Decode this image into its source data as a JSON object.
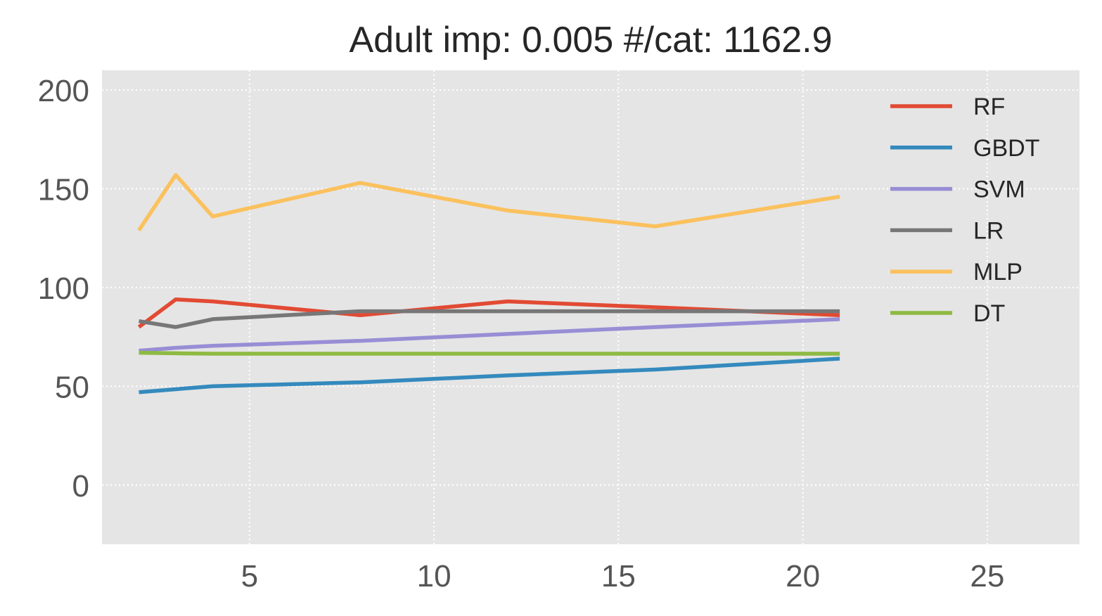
{
  "chart_data": {
    "type": "line",
    "title": "Adult imp: 0.005 #/cat: 1162.9",
    "xlabel": "",
    "ylabel": "",
    "xlim": [
      1,
      27.5
    ],
    "ylim": [
      -30,
      210
    ],
    "x_ticks": [
      5,
      10,
      15,
      20,
      25
    ],
    "x_tick_labels": [
      "5",
      "10",
      "15",
      "20",
      "25"
    ],
    "y_ticks": [
      0,
      50,
      100,
      150,
      200
    ],
    "y_tick_labels": [
      "0",
      "50",
      "100",
      "150",
      "200"
    ],
    "grid": true,
    "legend_position": "top-right",
    "x": [
      2,
      3,
      4,
      8,
      12,
      16,
      21
    ],
    "series": [
      {
        "name": "RF",
        "color": "#E24A33",
        "values": [
          80,
          94,
          93,
          86,
          93,
          90,
          86
        ]
      },
      {
        "name": "GBDT",
        "color": "#348ABD",
        "values": [
          47,
          48.5,
          50,
          52,
          55.5,
          58.5,
          64
        ]
      },
      {
        "name": "SVM",
        "color": "#988ED5",
        "values": [
          68,
          69.5,
          70.5,
          73,
          76.5,
          80,
          84
        ]
      },
      {
        "name": "LR",
        "color": "#777777",
        "values": [
          83,
          80,
          84,
          88,
          88,
          88,
          88
        ]
      },
      {
        "name": "MLP",
        "color": "#FBC15E",
        "values": [
          129,
          157,
          136,
          153,
          139,
          131,
          146
        ]
      },
      {
        "name": "DT",
        "color": "#8EBA42",
        "values": [
          67,
          66.7,
          66.5,
          66.5,
          66.5,
          66.5,
          66.5
        ]
      }
    ]
  }
}
